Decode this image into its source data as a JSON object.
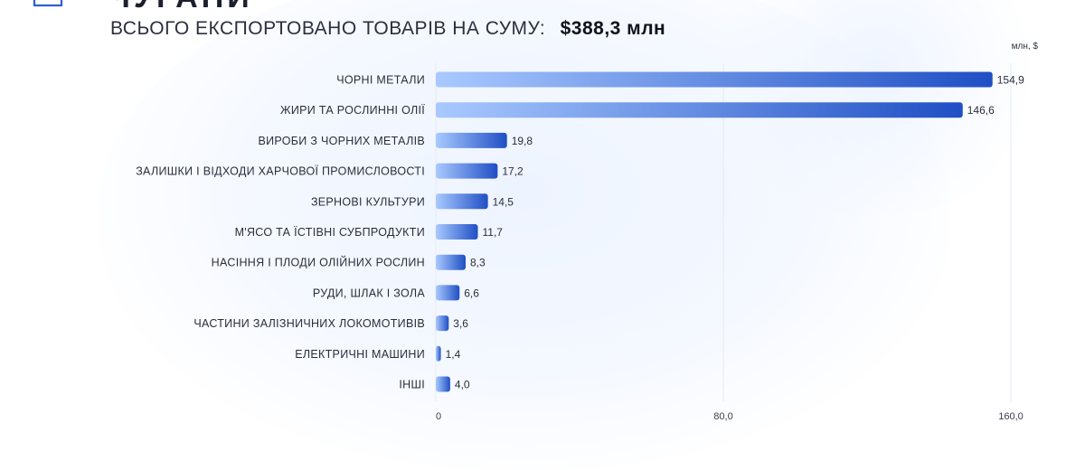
{
  "header": {
    "title_partial": "ЧУГАНИ",
    "subtitle_prefix": "ВСЬОГО ЕКСПОРТОВАНО ТОВАРІВ НА СУМУ:",
    "subtitle_total": "$388,3 млн"
  },
  "logo_icon": "envelope-icon",
  "colors": {
    "bar_light": "#a9c9ff",
    "bar_dark": "#1f4fc4",
    "grid": "#e6eaf3"
  },
  "chart_data": {
    "type": "bar",
    "orientation": "horizontal",
    "unit": "млн, $",
    "categories": [
      "ЧОРНІ МЕТАЛИ",
      "ЖИРИ ТА РОСЛИННІ ОЛІЇ",
      "ВИРОБИ З ЧОРНИХ МЕТАЛІВ",
      "ЗАЛИШКИ І ВІДХОДИ ХАРЧОВОЇ ПРОМИСЛОВОСТІ",
      "ЗЕРНОВІ КУЛЬТУРИ",
      "М'ЯСО ТА ЇСТІВНІ СУБПРОДУКТИ",
      "НАСІННЯ І ПЛОДИ ОЛІЙНИХ РОСЛИН",
      "РУДИ, ШЛАК І ЗОЛА",
      "ЧАСТИНИ ЗАЛІЗНИЧНИХ ЛОКОМОТИВІВ",
      "ЕЛЕКТРИЧНІ МАШИНИ",
      "ІНШІ"
    ],
    "values": [
      154.9,
      146.6,
      19.8,
      17.2,
      14.5,
      11.7,
      8.3,
      6.6,
      3.6,
      1.4,
      4.0
    ],
    "value_labels": [
      "154,9",
      "146,6",
      "19,8",
      "17,2",
      "14,5",
      "11,7",
      "8,3",
      "6,6",
      "3,6",
      "1,4",
      "4,0"
    ],
    "xlim": [
      0,
      160
    ],
    "x_ticks": [
      0,
      80,
      160
    ],
    "x_tick_labels": [
      "0",
      "80,0",
      "160,0"
    ],
    "grid": true
  }
}
